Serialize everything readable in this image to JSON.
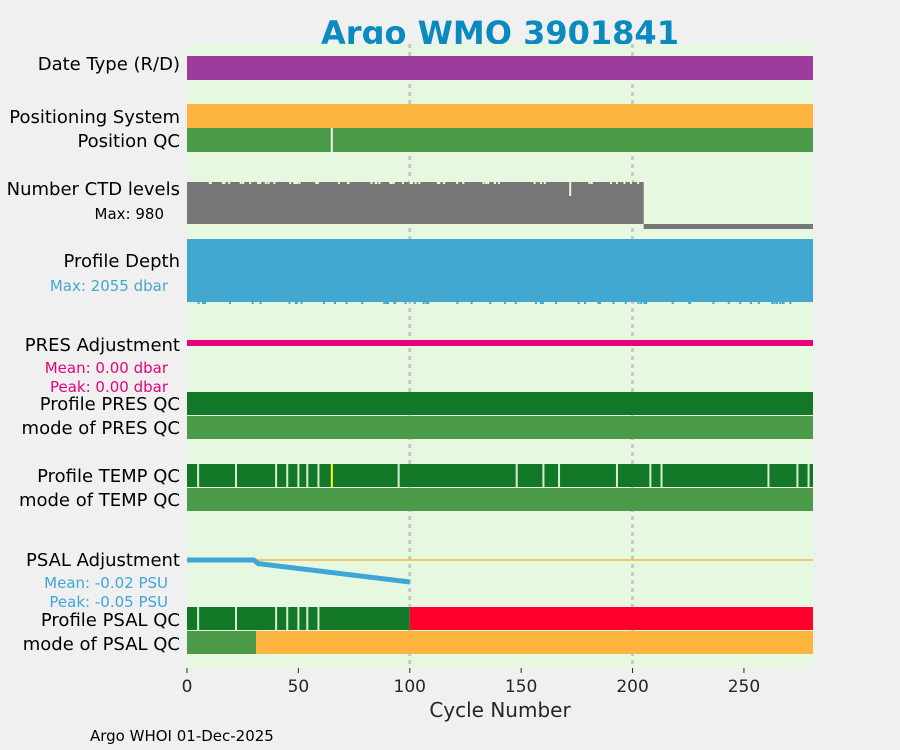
{
  "chart_data": {
    "type": "bar",
    "title": "Argo WMO 3901841",
    "xlabel": "Cycle Number",
    "xlim": [
      0,
      281
    ],
    "x_ticks": [
      0,
      50,
      100,
      150,
      200,
      250
    ],
    "gridlines_x": [
      100,
      200
    ],
    "footer": "Argo WHOI 01-Dec-2025",
    "colors": {
      "title": "#0a8abf",
      "background": "#e6f9e0",
      "date_type": "#9b3b9b",
      "positioning": "#fdb53f",
      "qc_good": "#4a9a48",
      "qc_dark": "#137728",
      "qc_bad": "#fe0029",
      "ctd": "#767676",
      "depth": "#42a8d0",
      "pres": "#e9007d",
      "psal_line": "#40a6d6",
      "psal_zero": "#f5b942",
      "tick_gap": "#d7ecd1",
      "yellow_flag": "#ffff1a"
    },
    "labels": {
      "date_type": "Date Type (R/D)",
      "positioning": "Positioning System",
      "position_qc": "Position QC",
      "ctd": "Number CTD levels",
      "ctd_max": "Max: 980",
      "depth": "Profile Depth",
      "depth_max": "Max: 2055 dbar",
      "pres_adj": "PRES Adjustment",
      "pres_mean": "Mean: 0.00 dbar",
      "pres_peak": "Peak: 0.00 dbar",
      "profile_pres_qc": "Profile PRES QC",
      "mode_pres_qc": "mode of PRES QC",
      "profile_temp_qc": "Profile TEMP QC",
      "mode_temp_qc": "mode of TEMP QC",
      "psal_adj": "PSAL Adjustment",
      "psal_mean": "Mean: -0.02 PSU",
      "psal_peak": "Peak: -0.05 PSU",
      "profile_psal_qc": "Profile PSAL QC",
      "mode_psal_qc": "mode of PSAL QC"
    },
    "series": {
      "position_qc_gaps": [
        65
      ],
      "ctd_end_cycle": 205,
      "ctd_max": 980,
      "depth_max_dbar": 2055,
      "profile_temp_qc_gaps": [
        5,
        22,
        40,
        45,
        50,
        54,
        59,
        95,
        148,
        160,
        167,
        193,
        208,
        213,
        261,
        274,
        279
      ],
      "profile_temp_qc_yellow": [
        65
      ],
      "profile_psal_qc_gaps": [
        5,
        22,
        40,
        45,
        50,
        54,
        59
      ],
      "profile_psal_qc_bad_from": 100,
      "mode_psal_qc_good_until": 31,
      "psal_adjustment": {
        "cycles": [
          0,
          30,
          32,
          100
        ],
        "values": [
          -0.02,
          -0.02,
          -0.025,
          -0.05
        ]
      }
    }
  }
}
